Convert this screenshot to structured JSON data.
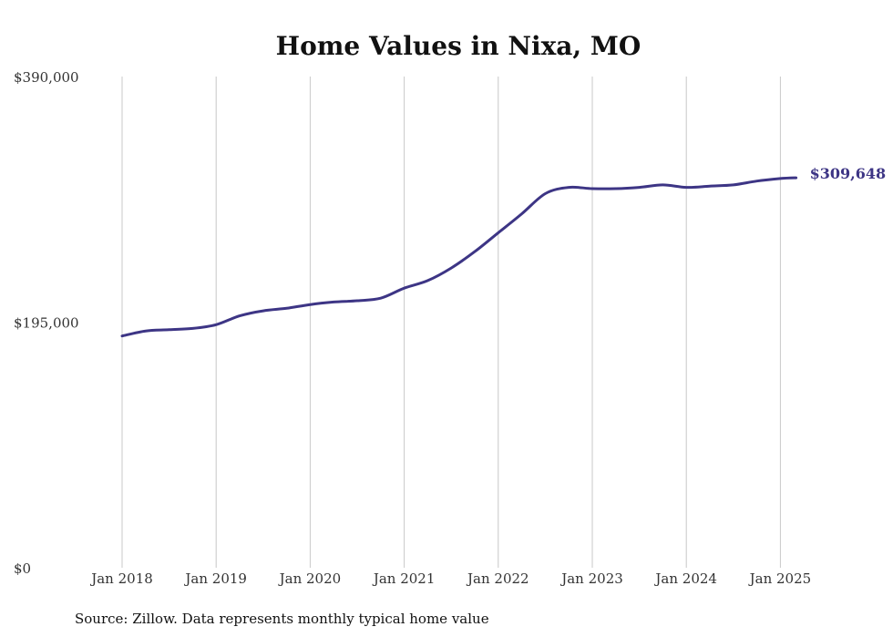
{
  "chart_data": {
    "type": "line",
    "title": "Home Values in Nixa, MO",
    "xlabel": "",
    "ylabel": "",
    "ylim": [
      0,
      390000
    ],
    "yticks": [
      {
        "value": 0,
        "label": "$0"
      },
      {
        "value": 195000,
        "label": "$195,000"
      },
      {
        "value": 390000,
        "label": "$390,000"
      }
    ],
    "xticks": [
      {
        "value": "2018-01",
        "label": "Jan 2018"
      },
      {
        "value": "2019-01",
        "label": "Jan 2019"
      },
      {
        "value": "2020-01",
        "label": "Jan 2020"
      },
      {
        "value": "2021-01",
        "label": "Jan 2021"
      },
      {
        "value": "2022-01",
        "label": "Jan 2022"
      },
      {
        "value": "2023-01",
        "label": "Jan 2023"
      },
      {
        "value": "2024-01",
        "label": "Jan 2024"
      },
      {
        "value": "2025-01",
        "label": "Jan 2025"
      }
    ],
    "grid": "vertical",
    "line_color": "#3d3585",
    "series": [
      {
        "points": [
          {
            "x": "2018-01",
            "y": 184000
          },
          {
            "x": "2018-04",
            "y": 188000
          },
          {
            "x": "2018-07",
            "y": 189000
          },
          {
            "x": "2018-10",
            "y": 190000
          },
          {
            "x": "2019-01",
            "y": 193000
          },
          {
            "x": "2019-04",
            "y": 200000
          },
          {
            "x": "2019-07",
            "y": 204000
          },
          {
            "x": "2019-10",
            "y": 206000
          },
          {
            "x": "2020-01",
            "y": 209000
          },
          {
            "x": "2020-04",
            "y": 211000
          },
          {
            "x": "2020-07",
            "y": 212000
          },
          {
            "x": "2020-10",
            "y": 214000
          },
          {
            "x": "2021-01",
            "y": 222000
          },
          {
            "x": "2021-04",
            "y": 228000
          },
          {
            "x": "2021-07",
            "y": 238000
          },
          {
            "x": "2021-10",
            "y": 251000
          },
          {
            "x": "2022-01",
            "y": 266000
          },
          {
            "x": "2022-04",
            "y": 281000
          },
          {
            "x": "2022-07",
            "y": 297000
          },
          {
            "x": "2022-10",
            "y": 302000
          },
          {
            "x": "2023-01",
            "y": 301000
          },
          {
            "x": "2023-04",
            "y": 301000
          },
          {
            "x": "2023-07",
            "y": 302000
          },
          {
            "x": "2023-10",
            "y": 304000
          },
          {
            "x": "2024-01",
            "y": 302000
          },
          {
            "x": "2024-04",
            "y": 303000
          },
          {
            "x": "2024-07",
            "y": 304000
          },
          {
            "x": "2024-10",
            "y": 307000
          },
          {
            "x": "2025-01",
            "y": 309000
          },
          {
            "x": "2025-03",
            "y": 309648
          }
        ]
      }
    ],
    "end_label": "$309,648"
  },
  "source_note": "Source: Zillow. Data represents monthly typical home value"
}
